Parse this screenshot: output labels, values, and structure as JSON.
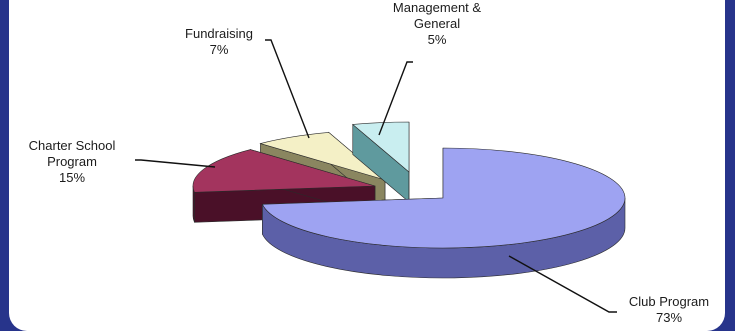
{
  "chart_data": {
    "type": "pie",
    "style": "3d-exploded",
    "slices": [
      {
        "name": "Club Program",
        "label_lines": [
          "Club Program",
          "73%"
        ],
        "value": 73,
        "top_color": "#9ea3f2",
        "side_color": "#5c60a8"
      },
      {
        "name": "Charter School Program",
        "label_lines": [
          "Charter School",
          "Program",
          "15%"
        ],
        "value": 15,
        "top_color": "#a3345e",
        "side_color": "#4a1028"
      },
      {
        "name": "Fundraising",
        "label_lines": [
          "Fundraising",
          "7%"
        ],
        "value": 7,
        "top_color": "#f4f0c6",
        "side_color": "#8a8660"
      },
      {
        "name": "Management & General",
        "label_lines": [
          "Management &",
          "General",
          "5%"
        ],
        "value": 5,
        "top_color": "#c9eef0",
        "side_color": "#5f9a9e"
      }
    ]
  },
  "colors": {
    "background": "#27348b",
    "panel": "#ffffff",
    "leader": "#111111"
  }
}
